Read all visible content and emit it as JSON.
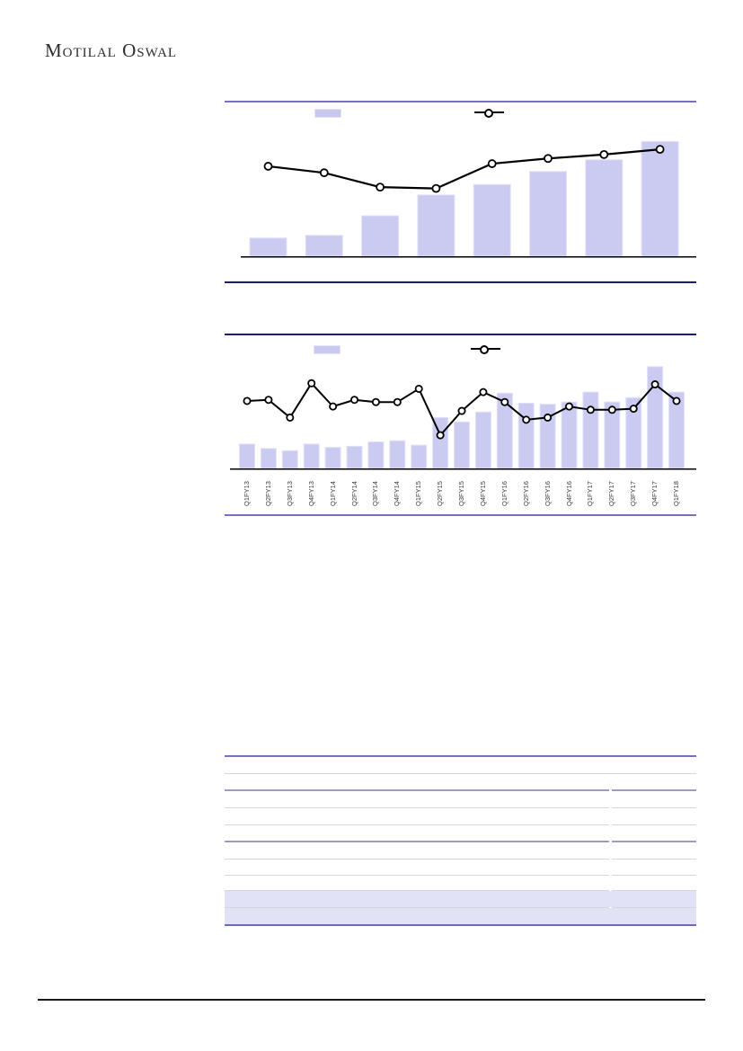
{
  "header": {
    "logo_text": "Motilal Oswal"
  },
  "colors": {
    "bar_fill": "#cbcbf2",
    "bar_edge": "#e0e0f8",
    "line": "#000000",
    "marker_fill": "#ffffff",
    "accent_purple": "#7a70c2",
    "navy_rule": "#1a1a78",
    "table_mid_rule": "#9c9cc7",
    "table_gray_rule": "#d6d6d6",
    "shaded_row_fill": "#e2e2f6",
    "axis": "#000000"
  },
  "icons": {
    "legend_bar_swatch": "filled-rectangle-swatch",
    "legend_line_marker": "line-with-open-circle-marker"
  },
  "chart_data": [
    {
      "type": "bar",
      "title": "",
      "subtitle": "",
      "categories": [
        "",
        "",
        "",
        "",
        "",
        "",
        "",
        ""
      ],
      "series": [
        {
          "name": "bars",
          "type": "bar",
          "values_pct_of_plot_height": [
            14,
            16,
            31,
            47,
            55,
            65,
            74,
            88
          ]
        },
        {
          "name": "line",
          "type": "line",
          "values_pct_of_plot_height": [
            69,
            64,
            53,
            52,
            71,
            75,
            78,
            82
          ]
        }
      ],
      "legend": {
        "position": "top",
        "entries": [
          {
            "swatch": "bar",
            "label": ""
          },
          {
            "swatch": "line-marker",
            "label": ""
          }
        ]
      },
      "grid": false,
      "axis_labels_visible": false,
      "value_labels": false
    },
    {
      "type": "bar",
      "title": "",
      "subtitle": "",
      "categories": [
        "Q1FY13",
        "Q2FY13",
        "Q3FY13",
        "Q4FY13",
        "Q1FY14",
        "Q2FY14",
        "Q3FY14",
        "Q4FY14",
        "Q1FY15",
        "Q2FY15",
        "Q3FY15",
        "Q4FY15",
        "Q1FY16",
        "Q2FY16",
        "Q3FY16",
        "Q4FY16",
        "Q1FY17",
        "Q2FY17",
        "Q3FY17",
        "Q4FY17",
        "Q1FY18"
      ],
      "series": [
        {
          "name": "bars",
          "type": "bar",
          "values_pct_of_plot_height": [
            22,
            18,
            16,
            22,
            19,
            20,
            24,
            25,
            21,
            46,
            42,
            51,
            68,
            59,
            58,
            60,
            69,
            60,
            64,
            92,
            69
          ]
        },
        {
          "name": "line",
          "type": "line",
          "values_pct_of_plot_height": [
            61,
            62,
            46,
            77,
            56,
            62,
            60,
            60,
            72,
            30,
            52,
            69,
            60,
            44,
            46,
            56,
            53,
            53,
            54,
            76,
            61
          ]
        }
      ],
      "legend": {
        "position": "top",
        "entries": [
          {
            "swatch": "bar",
            "label": ""
          },
          {
            "swatch": "line-marker",
            "label": ""
          }
        ]
      },
      "grid": false,
      "axis_labels_visible": true,
      "value_labels": false
    }
  ],
  "table": {
    "visible_text": "",
    "column_count": 2,
    "shaded_row_count": 2
  }
}
